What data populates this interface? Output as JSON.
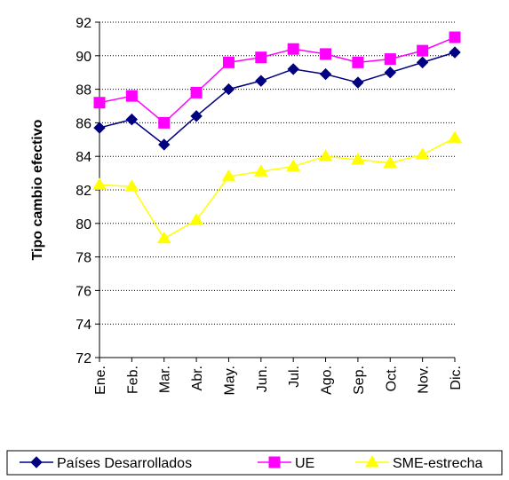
{
  "chart_data": {
    "type": "line",
    "y_label": "Tipo cambio efectivo",
    "categories": [
      "Ene.",
      "Feb.",
      "Mar.",
      "Abr.",
      "May.",
      "Jun.",
      "Jul.",
      "Ago.",
      "Sep.",
      "Oct.",
      "Nov.",
      "Dic."
    ],
    "series": [
      {
        "name": "Países Desarrollados",
        "color": "#000080",
        "marker": "diamond",
        "values": [
          85.7,
          86.2,
          84.7,
          86.4,
          88.0,
          88.5,
          89.2,
          88.9,
          88.4,
          89.0,
          89.6,
          90.2
        ]
      },
      {
        "name": "UE",
        "color": "#ff00ff",
        "marker": "square",
        "values": [
          87.2,
          87.6,
          86.0,
          87.8,
          89.6,
          89.9,
          90.4,
          90.1,
          89.6,
          89.8,
          90.3,
          91.1
        ]
      },
      {
        "name": "SME-estrecha",
        "color": "#ffff00",
        "marker": "triangle",
        "values": [
          82.3,
          82.2,
          79.1,
          80.2,
          82.8,
          83.1,
          83.4,
          84.0,
          83.8,
          83.6,
          84.1,
          85.1
        ]
      }
    ],
    "ylim": [
      72,
      92
    ],
    "yticks": [
      72,
      74,
      76,
      78,
      80,
      82,
      84,
      86,
      88,
      90,
      92
    ],
    "grid": true,
    "legend": "bottom"
  }
}
